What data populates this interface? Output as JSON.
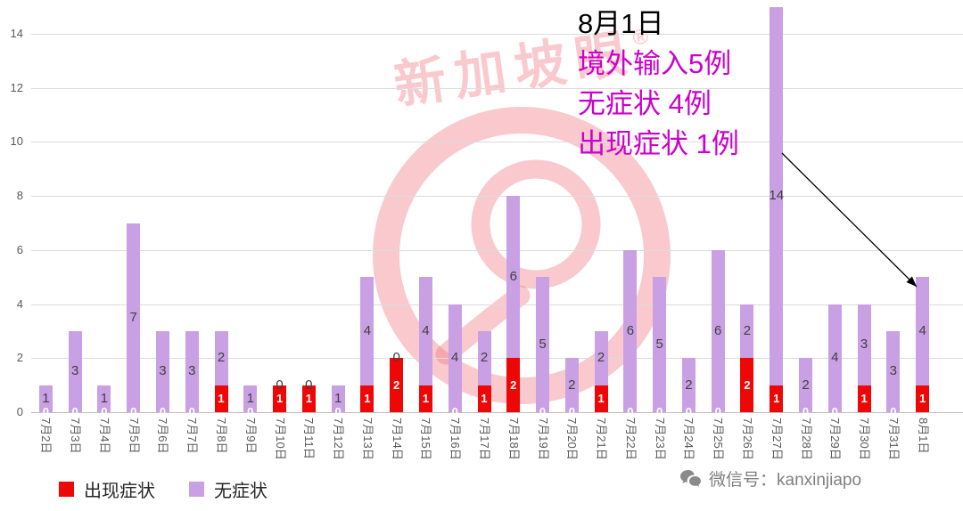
{
  "colors": {
    "symptomatic": "#ee0707",
    "asymptomatic": "#c9a0e4",
    "annotation_magenta": "#cc00cc",
    "label_gray": "#404040",
    "axis_gray": "#595959",
    "watermark_pink": "rgba(240,120,132,0.40)",
    "footer_gray": "#808080"
  },
  "chart_data": {
    "type": "bar",
    "stacked": true,
    "title": "",
    "categories": [
      "7月2日",
      "7月3日",
      "7月4日",
      "7月5日",
      "7月6日",
      "7月7日",
      "7月8日",
      "7月9日",
      "7月10日",
      "7月11日",
      "7月12日",
      "7月13日",
      "7月14日",
      "7月15日",
      "7月16日",
      "7月17日",
      "7月18日",
      "7月19日",
      "7月20日",
      "7月21日",
      "7月22日",
      "7月23日",
      "7月24日",
      "7月25日",
      "7月26日",
      "7月27日",
      "7月28日",
      "7月29日",
      "7月30日",
      "7月31日",
      "8月1日"
    ],
    "series": [
      {
        "name": "出现症状",
        "color": "#ee0707",
        "values": [
          0,
          0,
          0,
          0,
          0,
          0,
          1,
          0,
          1,
          1,
          0,
          1,
          2,
          1,
          0,
          1,
          2,
          0,
          0,
          1,
          0,
          0,
          0,
          0,
          2,
          1,
          0,
          0,
          1,
          0,
          1
        ]
      },
      {
        "name": "无症状",
        "color": "#c9a0e4",
        "values": [
          1,
          3,
          1,
          7,
          3,
          3,
          2,
          1,
          0,
          0,
          1,
          4,
          0,
          4,
          4,
          2,
          6,
          5,
          2,
          2,
          6,
          5,
          2,
          6,
          2,
          14,
          2,
          4,
          3,
          3,
          4
        ]
      }
    ],
    "ylim": [
      0,
      14
    ],
    "yticks": [
      0,
      2,
      4,
      6,
      8,
      10,
      12,
      14
    ],
    "grid": true,
    "legend_position": "bottom-left"
  },
  "annotation": {
    "title": "8月1日",
    "lines": [
      "境外输入5例",
      "无症状 4例",
      "出现症状 1例"
    ]
  },
  "watermark": {
    "text": "新加坡眼",
    "registered": "®"
  },
  "footer": {
    "wechat": "微信号：kanxinjiapo"
  }
}
